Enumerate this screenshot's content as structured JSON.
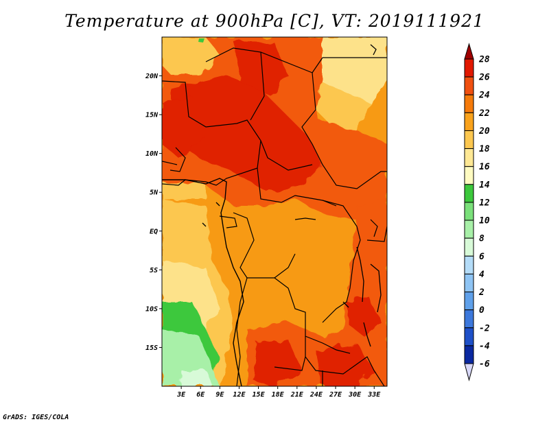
{
  "title": "Temperature at 900hPa [C], VT: 2019111921",
  "credit": "GrADS: IGES/COLA",
  "lat_axis": {
    "labels": [
      "20N",
      "15N",
      "10N",
      "5N",
      "EQ",
      "5S",
      "10S",
      "15S"
    ],
    "values": [
      20,
      15,
      10,
      5,
      0,
      -5,
      -10,
      -15
    ],
    "range": [
      -20,
      25
    ]
  },
  "lon_axis": {
    "labels": [
      "3E",
      "6E",
      "9E",
      "12E",
      "15E",
      "18E",
      "21E",
      "24E",
      "27E",
      "30E",
      "33E"
    ],
    "values": [
      3,
      6,
      9,
      12,
      15,
      18,
      21,
      24,
      27,
      30,
      33
    ],
    "range": [
      0,
      35
    ]
  },
  "colorbar": {
    "levels": [
      "28",
      "26",
      "24",
      "22",
      "20",
      "18",
      "16",
      "14",
      "12",
      "10",
      "8",
      "6",
      "4",
      "2",
      "0",
      "-2",
      "-4",
      "-6"
    ],
    "colors": [
      "#a00000",
      "#e11800",
      "#f05010",
      "#f57a0a",
      "#f9a21b",
      "#fcc74f",
      "#fee894",
      "#fffbc1",
      "#3cc83c",
      "#7ae07a",
      "#a8f0a8",
      "#d8fad8",
      "#b4dcf8",
      "#8ec4f4",
      "#5fa0ea",
      "#3c78dc",
      "#1e50c8",
      "#0a28a0",
      "#08086e",
      "#d8d8f8"
    ]
  },
  "regions": {
    "background": "#f79a14",
    "hot_core": "#e02000",
    "warm": "#f25a0e",
    "cool_ocean": "#fcc74f",
    "mild": "#fde28a",
    "green": "#3cc83c",
    "light_green": "#a8f0a8"
  }
}
